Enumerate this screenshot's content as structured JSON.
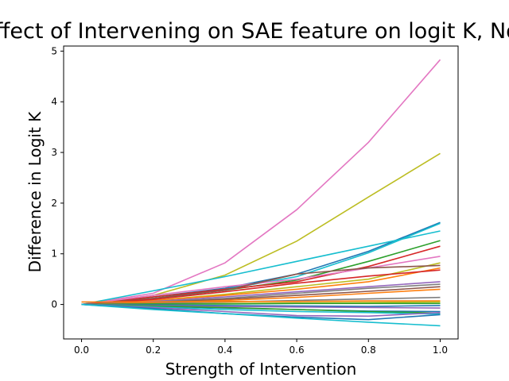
{
  "chart_data": {
    "type": "line",
    "title": "Effect of Intervening on SAE feature on logit K, Not",
    "xlabel": "Strength of Intervention",
    "ylabel": "Difference in Logit K",
    "xlim": [
      -0.05,
      1.05
    ],
    "ylim": [
      -0.68,
      5.1
    ],
    "xticks": [
      "0.0",
      "0.2",
      "0.4",
      "0.6",
      "0.8",
      "1.0"
    ],
    "yticks": [
      "0",
      "1",
      "2",
      "3",
      "4",
      "5"
    ],
    "grid": false,
    "legend": "none",
    "x": [
      0.0,
      0.2,
      0.4,
      0.6,
      0.8,
      1.0
    ],
    "series": [
      {
        "color": "#e377c2",
        "values": [
          0.0,
          0.22,
          0.82,
          1.87,
          3.2,
          4.83
        ]
      },
      {
        "color": "#bcbd22",
        "values": [
          0.0,
          0.18,
          0.58,
          1.25,
          2.12,
          2.98
        ]
      },
      {
        "color": "#1f77b4",
        "values": [
          0.0,
          0.15,
          0.32,
          0.6,
          1.05,
          1.62
        ]
      },
      {
        "color": "#17becf",
        "values": [
          0.0,
          0.27,
          0.55,
          0.85,
          1.15,
          1.45
        ]
      },
      {
        "color": "#17becf",
        "values": [
          0.0,
          0.12,
          0.3,
          0.55,
          1.02,
          1.6
        ]
      },
      {
        "color": "#2ca02c",
        "values": [
          0.0,
          0.12,
          0.28,
          0.48,
          0.85,
          1.26
        ]
      },
      {
        "color": "#d62728",
        "values": [
          0.0,
          0.15,
          0.3,
          0.45,
          0.75,
          1.15
        ]
      },
      {
        "color": "#e377c2",
        "values": [
          0.0,
          0.18,
          0.35,
          0.5,
          0.72,
          0.95
        ]
      },
      {
        "color": "#bcbd22",
        "values": [
          0.0,
          0.08,
          0.2,
          0.35,
          0.5,
          0.82
        ]
      },
      {
        "color": "#8c564b",
        "values": [
          0.0,
          0.12,
          0.28,
          0.6,
          0.72,
          0.77
        ]
      },
      {
        "color": "#ff7f0e",
        "values": [
          0.0,
          0.08,
          0.18,
          0.3,
          0.45,
          0.72
        ]
      },
      {
        "color": "#d62728",
        "values": [
          0.0,
          0.1,
          0.25,
          0.42,
          0.56,
          0.68
        ]
      },
      {
        "color": "#9467bd",
        "values": [
          0.0,
          0.06,
          0.15,
          0.25,
          0.35,
          0.45
        ]
      },
      {
        "color": "#7f7f7f",
        "values": [
          0.0,
          0.05,
          0.12,
          0.22,
          0.32,
          0.4
        ]
      },
      {
        "color": "#8c564b",
        "values": [
          0.0,
          0.04,
          0.1,
          0.18,
          0.26,
          0.35
        ]
      },
      {
        "color": "#ff7f0e",
        "values": [
          0.0,
          0.03,
          0.08,
          0.14,
          0.22,
          0.3
        ]
      },
      {
        "color": "#7f7f7f",
        "values": [
          0.0,
          0.02,
          0.05,
          0.08,
          0.11,
          0.14
        ]
      },
      {
        "color": "#ff7f0e",
        "values": [
          0.05,
          0.05,
          0.06,
          0.06,
          0.07,
          0.07
        ]
      },
      {
        "color": "#bcbd22",
        "values": [
          0.0,
          0.01,
          0.02,
          0.03,
          0.04,
          0.05
        ]
      },
      {
        "color": "#2ca02c",
        "values": [
          0.0,
          0.01,
          0.01,
          0.02,
          0.02,
          0.02
        ]
      },
      {
        "color": "#1f77b4",
        "values": [
          0.0,
          -0.01,
          -0.02,
          -0.03,
          -0.04,
          -0.02
        ]
      },
      {
        "color": "#9467bd",
        "values": [
          0.0,
          -0.02,
          -0.04,
          -0.05,
          -0.06,
          -0.07
        ]
      },
      {
        "color": "#1f77b4",
        "values": [
          0.0,
          -0.04,
          -0.07,
          -0.1,
          -0.13,
          -0.14
        ]
      },
      {
        "color": "#2ca02c",
        "values": [
          0.0,
          -0.03,
          -0.06,
          -0.1,
          -0.14,
          -0.17
        ]
      },
      {
        "color": "#17becf",
        "values": [
          0.0,
          -0.05,
          -0.1,
          -0.14,
          -0.16,
          -0.19
        ]
      },
      {
        "color": "#9467bd",
        "values": [
          0.0,
          -0.06,
          -0.14,
          -0.22,
          -0.23,
          -0.16
        ]
      },
      {
        "color": "#1f77b4",
        "values": [
          0.0,
          -0.08,
          -0.18,
          -0.25,
          -0.3,
          -0.2
        ]
      },
      {
        "color": "#17becf",
        "values": [
          0.0,
          -0.1,
          -0.18,
          -0.27,
          -0.35,
          -0.42
        ]
      }
    ]
  }
}
